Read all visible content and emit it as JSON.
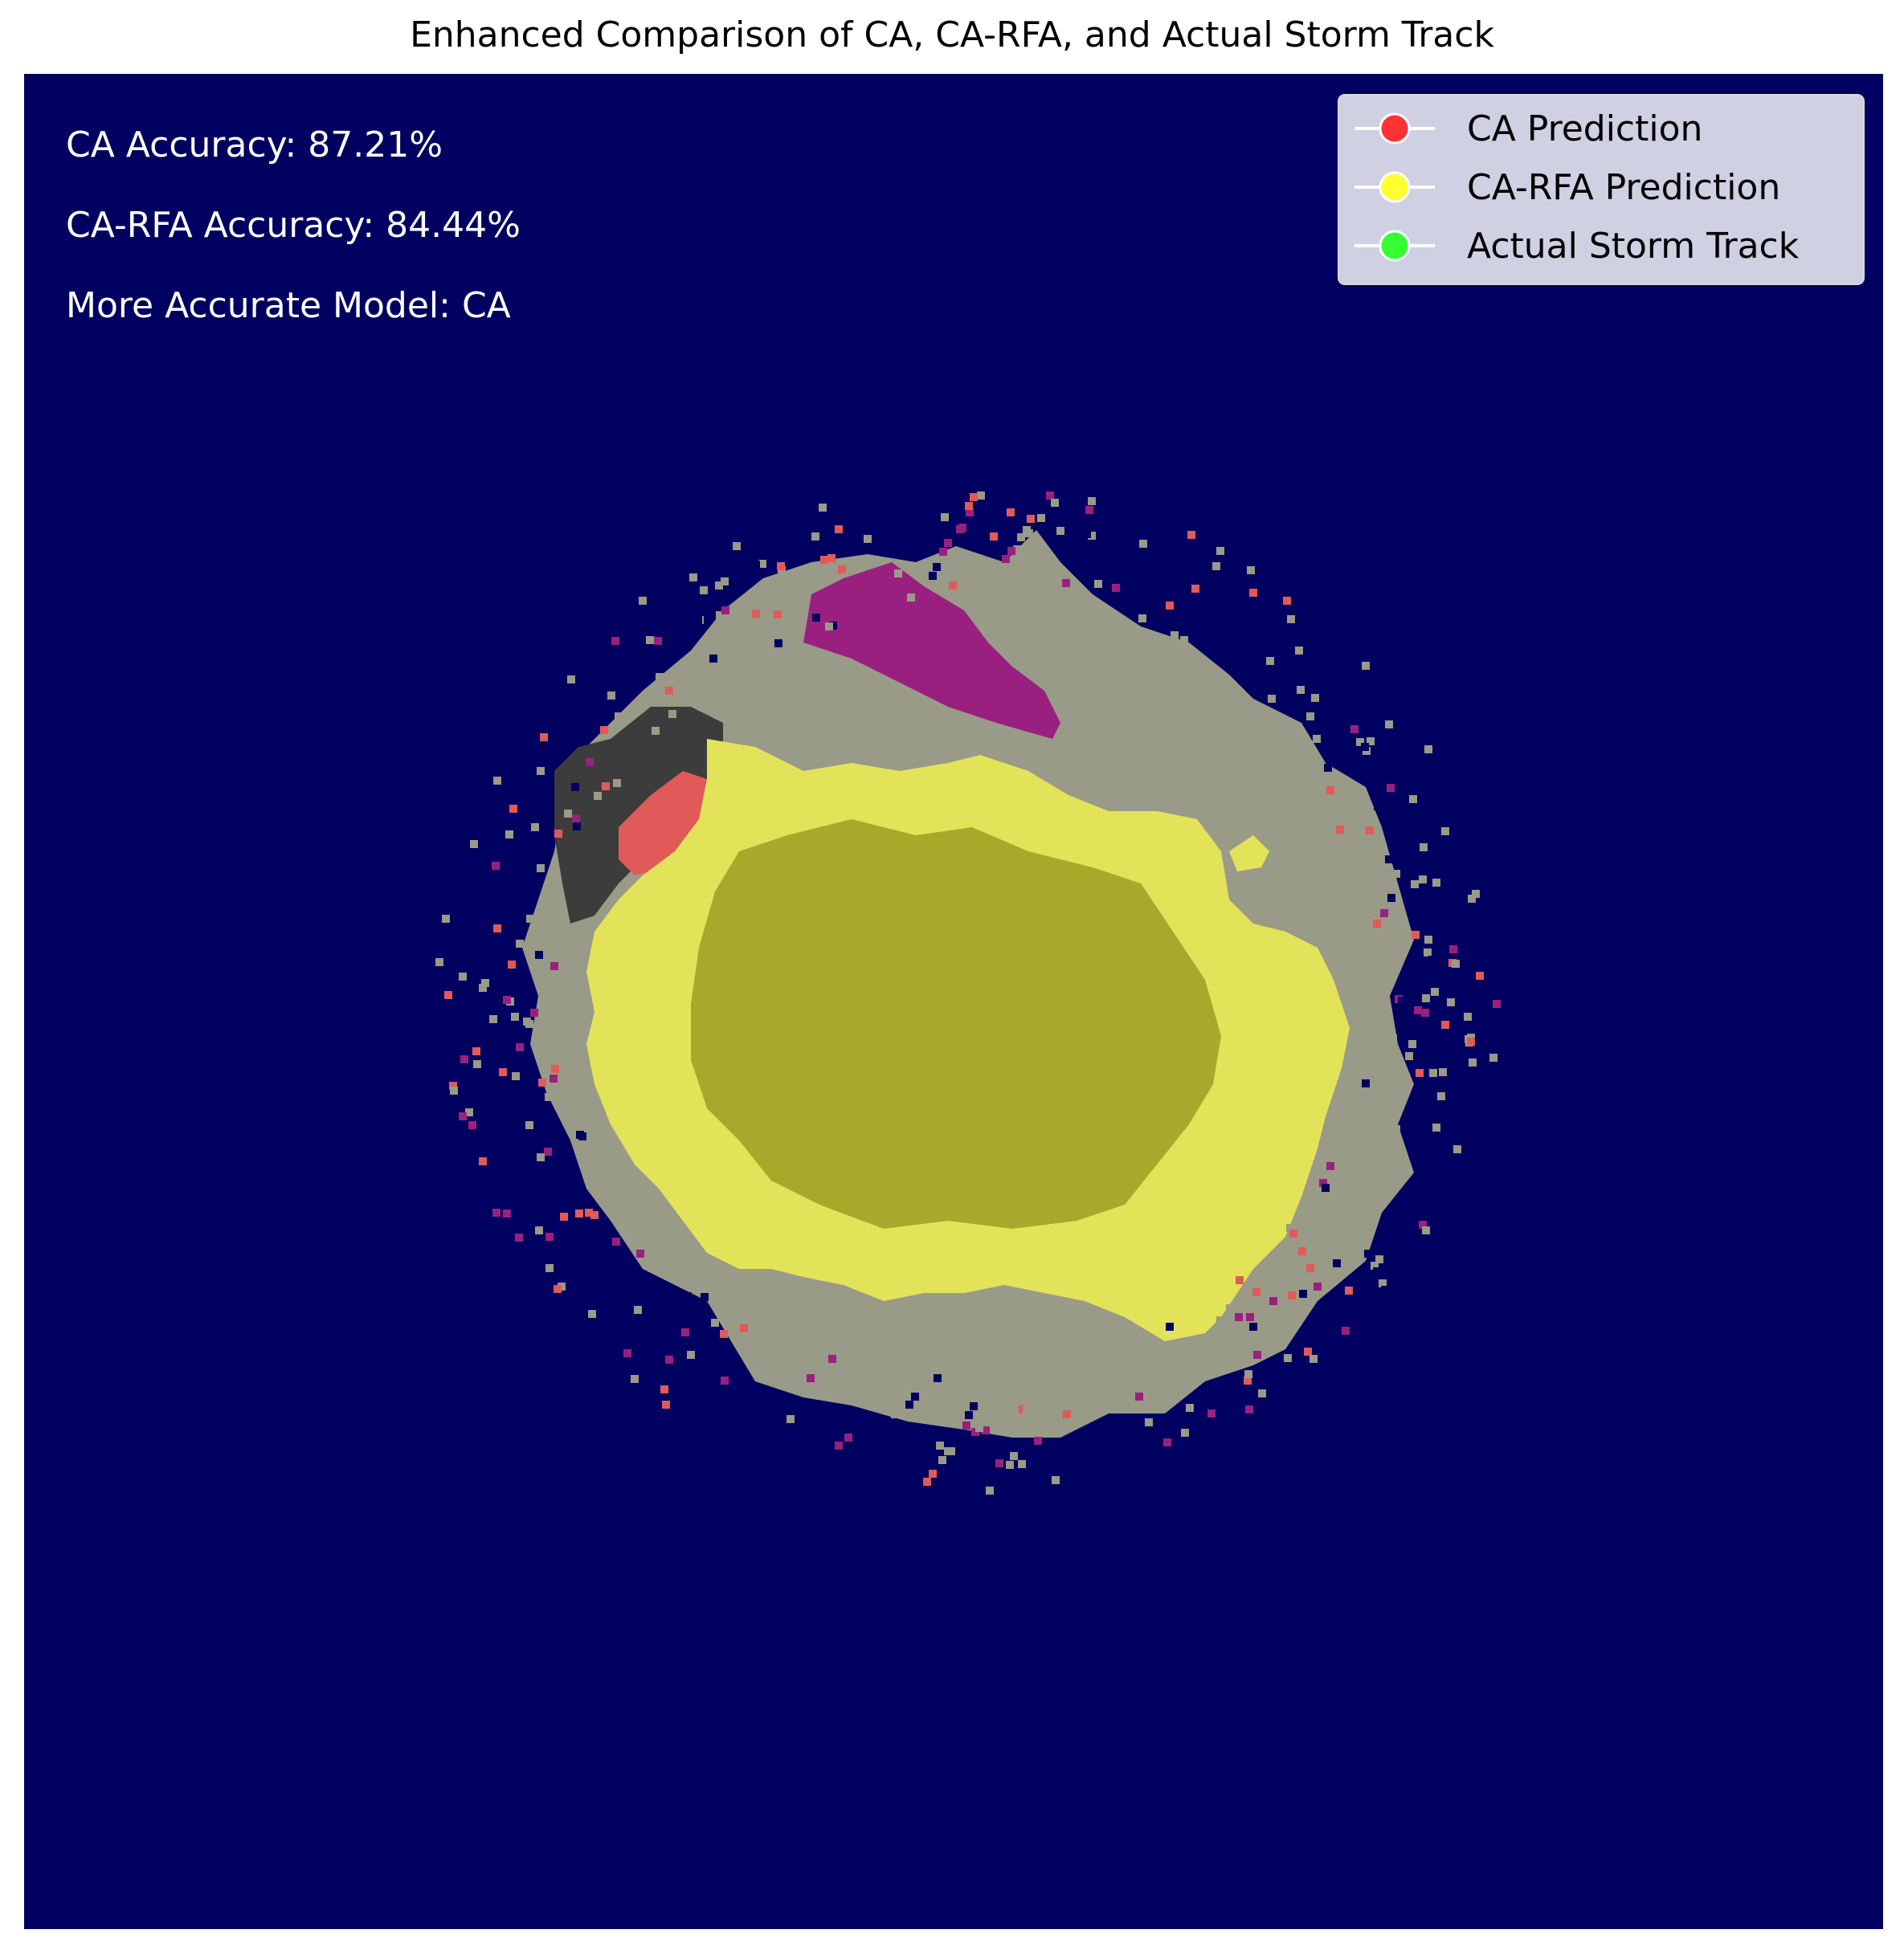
{
  "chart_data": {
    "type": "heatmap",
    "title": "Enhanced Comparison of CA, CA-RFA, and Actual Storm Track",
    "xlabel": "",
    "ylabel": "",
    "axes_visible": false,
    "grid": false,
    "background_color": "#000060",
    "annotations": [
      "CA Accuracy: 87.21%",
      "CA-RFA Accuracy: 84.44%",
      "More Accurate Model: CA"
    ],
    "metrics": [
      {
        "model": "CA",
        "accuracy_percent": 87.21
      },
      {
        "model": "CA-RFA",
        "accuracy_percent": 84.44
      }
    ],
    "more_accurate_model": "CA",
    "legend": {
      "placement": "top-right",
      "entries": [
        {
          "label": "CA Prediction",
          "color": "#ff3333"
        },
        {
          "label": "CA-RFA Prediction",
          "color": "#ffff33"
        },
        {
          "label": "Actual Storm Track",
          "color": "#33ff33"
        }
      ]
    },
    "overlay_colors": {
      "ca_rfa_region": "#e3e35a",
      "ca_rfa_core": "#a8a82a",
      "actual_track_region": "#9a9a88",
      "ca_region": "#e05a5a",
      "ca_only_dark": "#3c3c3c",
      "mismatch": "#9a2080"
    }
  }
}
